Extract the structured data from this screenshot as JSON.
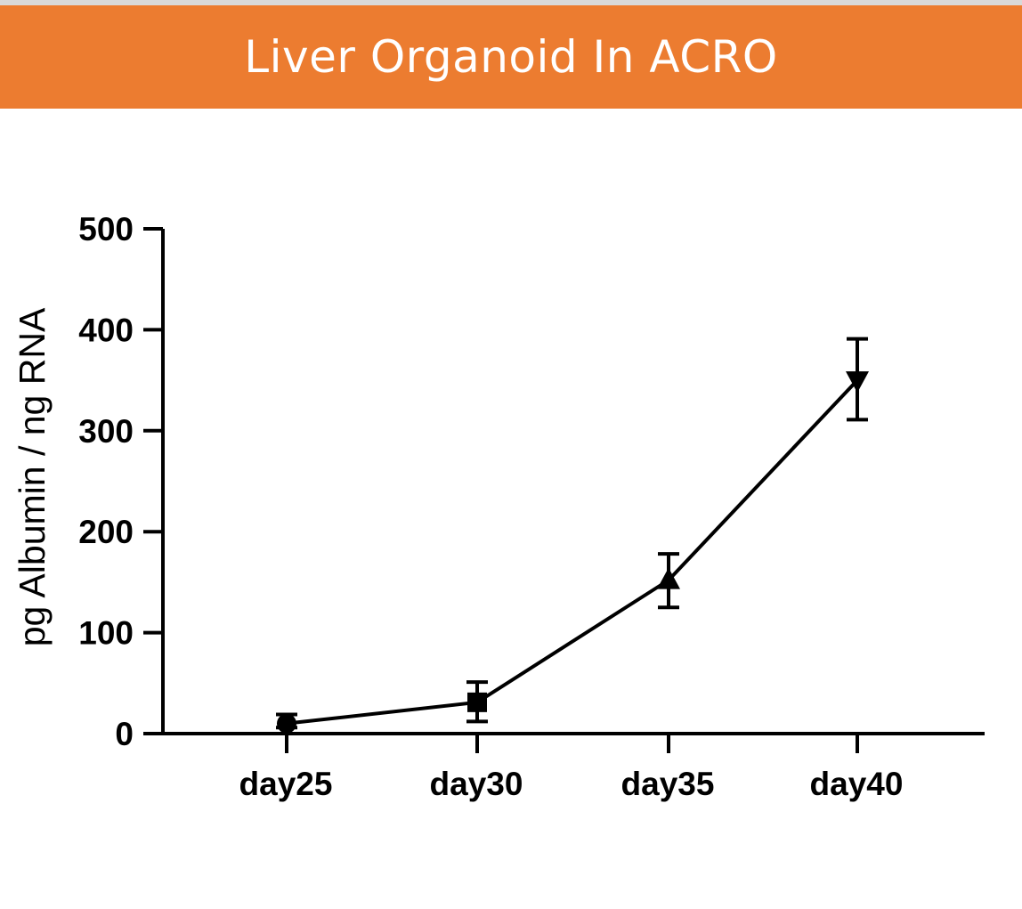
{
  "header": {
    "title": "Liver Organoid In ACRO"
  },
  "colors": {
    "banner": "#ec7c30",
    "top_line": "#d9d9d9",
    "ink": "#000000"
  },
  "chart_data": {
    "type": "line",
    "title": "Liver Organoid In ACRO",
    "xlabel": "",
    "ylabel": "pg Albumin / ng RNA",
    "categories": [
      "day25",
      "day30",
      "day35",
      "day40"
    ],
    "ylim": [
      0,
      500
    ],
    "yticks": [
      0,
      100,
      200,
      300,
      400,
      500
    ],
    "ytick_labels": [
      "0",
      "100",
      "200",
      "300",
      "400",
      "500"
    ],
    "series": [
      {
        "name": "Albumin",
        "values": [
          10,
          31,
          152,
          350
        ],
        "error": [
          [
            6,
            19
          ],
          [
            12,
            51
          ],
          [
            125,
            178
          ],
          [
            311,
            391
          ]
        ],
        "markers": [
          "circle",
          "square",
          "triangle-up",
          "triangle-down"
        ]
      }
    ],
    "grid": false,
    "legend": "none"
  }
}
